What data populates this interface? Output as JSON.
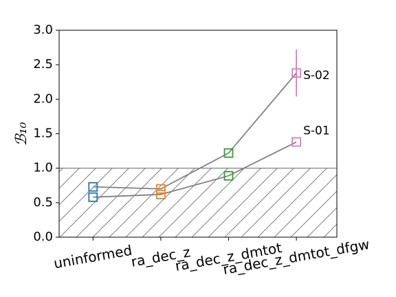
{
  "chart_data": {
    "type": "line",
    "ylabel": "ℬ₁₀",
    "categories": [
      "uninformed",
      "ra_dec_z",
      "ra_dec_z_dmtot",
      "ra_dec_z_dmtot_dfgw"
    ],
    "marker_colors": [
      "#1f77b4",
      "#ff7f0e",
      "#2ca02c",
      "#e377c2"
    ],
    "line_color": "#808080",
    "series": [
      {
        "name": "S-01",
        "values": [
          0.58,
          0.62,
          0.89,
          1.38
        ],
        "errors": [
          null,
          null,
          null,
          null
        ]
      },
      {
        "name": "S-02",
        "values": [
          0.73,
          0.7,
          1.22,
          2.38
        ],
        "errors": [
          null,
          null,
          null,
          0.34
        ]
      }
    ],
    "hatch_below": 1.0,
    "ylim": [
      0.0,
      3.0
    ],
    "yticks": [
      {
        "value": 0,
        "label": "0.0"
      },
      {
        "value": 0.5,
        "label": "0.5"
      },
      {
        "value": 1,
        "label": "1.0"
      },
      {
        "value": 1.5,
        "label": "1.5"
      },
      {
        "value": 2,
        "label": "2.0"
      },
      {
        "value": 2.5,
        "label": "2.5"
      },
      {
        "value": 3,
        "label": "3.0"
      }
    ]
  }
}
